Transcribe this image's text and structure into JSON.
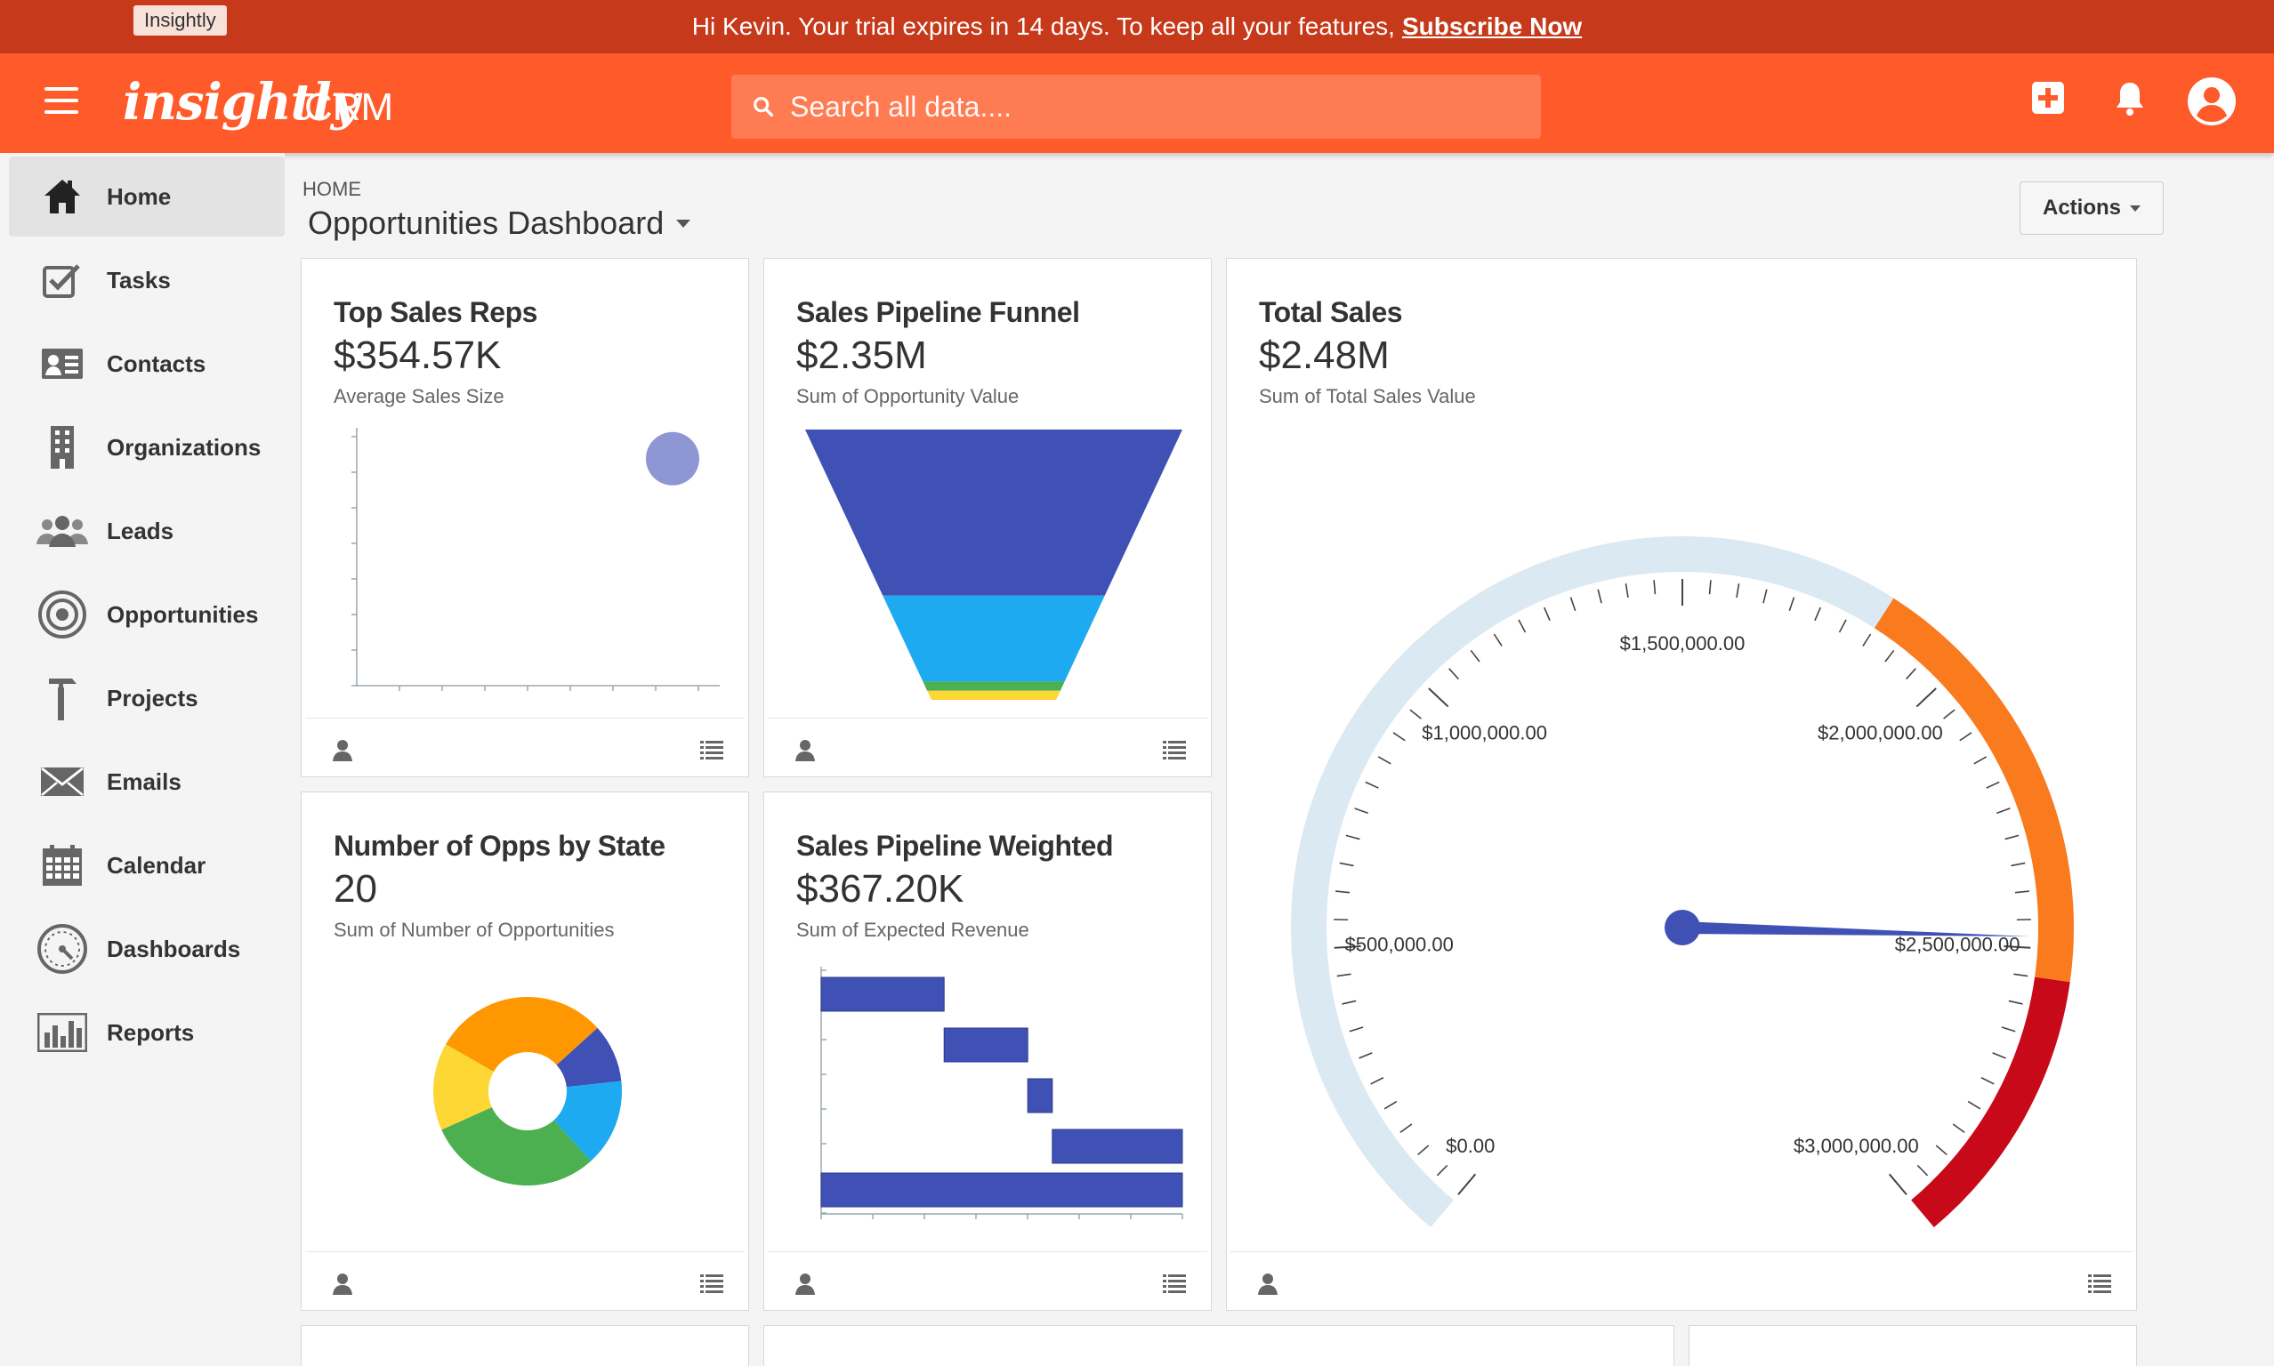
{
  "trial": {
    "brand_tag": "Insightly",
    "message": "Hi Kevin. Your trial expires in 14 days. To keep all your features,",
    "link": "Subscribe Now"
  },
  "topnav": {
    "logo": "insightly",
    "app_name": "CRM",
    "search_placeholder": "Search all data....",
    "icons": [
      "add-icon",
      "bell-icon",
      "user-icon"
    ]
  },
  "sidebar": {
    "items": [
      {
        "label": "Home",
        "icon": "home-icon",
        "active": true
      },
      {
        "label": "Tasks",
        "icon": "tasks-icon"
      },
      {
        "label": "Contacts",
        "icon": "contacts-icon"
      },
      {
        "label": "Organizations",
        "icon": "organizations-icon"
      },
      {
        "label": "Leads",
        "icon": "leads-icon"
      },
      {
        "label": "Opportunities",
        "icon": "opportunities-icon"
      },
      {
        "label": "Projects",
        "icon": "projects-icon"
      },
      {
        "label": "Emails",
        "icon": "emails-icon"
      },
      {
        "label": "Calendar",
        "icon": "calendar-icon"
      },
      {
        "label": "Dashboards",
        "icon": "dashboards-icon"
      },
      {
        "label": "Reports",
        "icon": "reports-icon"
      }
    ]
  },
  "page": {
    "breadcrumb": "HOME",
    "title": "Opportunities Dashboard",
    "actions_label": "Actions"
  },
  "cards": [
    {
      "title": "Top Sales Reps",
      "value": "$354.57K",
      "subtitle": "Average Sales Size"
    },
    {
      "title": "Sales Pipeline Funnel",
      "value": "$2.35M",
      "subtitle": "Sum of Opportunity Value"
    },
    {
      "title": "Total Sales",
      "value": "$2.48M",
      "subtitle": "Sum of Total Sales Value"
    },
    {
      "title": "Number of Opps by State",
      "value": "20",
      "subtitle": "Sum of Number of Opportunities"
    },
    {
      "title": "Sales Pipeline Weighted",
      "value": "$367.20K",
      "subtitle": "Sum of Expected Revenue"
    }
  ],
  "colors": {
    "trial_bar": "#c6391a",
    "nav": "#ff5a2a",
    "indigo": "#3f51b5",
    "sky": "#1eaaf1",
    "green": "#4caf50",
    "yellow": "#fdd835",
    "orange": "#ff9800",
    "gauge_track": "#dbe9f2",
    "gauge_orange": "#fa7a1e",
    "gauge_red": "#c8091a"
  },
  "chart_data": [
    {
      "type": "scatter",
      "title": "Top Sales Reps",
      "points": [
        {
          "x": 0.87,
          "y": 0.88
        }
      ],
      "xlim": [
        0,
        1
      ],
      "ylim": [
        0,
        1
      ]
    },
    {
      "type": "funnel",
      "title": "Sales Pipeline Funnel",
      "stages": [
        {
          "value": 1.45,
          "color": "#3f51b5"
        },
        {
          "value": 0.75,
          "color": "#1eaaf1"
        },
        {
          "value": 0.08,
          "color": "#4caf50"
        },
        {
          "value": 0.08,
          "color": "#fdd835"
        }
      ]
    },
    {
      "type": "gauge",
      "title": "Total Sales",
      "min": 0,
      "max": 3000000,
      "value": 2480000,
      "tick_labels": [
        "$0.00",
        "$500,000.00",
        "$1,000,000.00",
        "$1,500,000.00",
        "$2,000,000.00",
        "$2,500,000.00",
        "$3,000,000.00"
      ],
      "bands": [
        {
          "from": 0,
          "to": 1850000,
          "color": "#dbe9f2"
        },
        {
          "from": 1850000,
          "to": 2550000,
          "color": "#fa7a1e"
        },
        {
          "from": 2550000,
          "to": 3000000,
          "color": "#c8091a"
        }
      ]
    },
    {
      "type": "pie",
      "title": "Number of Opps by State",
      "slices": [
        {
          "value": 6,
          "color": "#ff9800"
        },
        {
          "value": 2,
          "color": "#3f51b5"
        },
        {
          "value": 3,
          "color": "#1eaaf1"
        },
        {
          "value": 6,
          "color": "#4caf50"
        },
        {
          "value": 3,
          "color": "#fdd835"
        }
      ]
    },
    {
      "type": "waterfall",
      "title": "Sales Pipeline Weighted",
      "steps": [
        {
          "start": 0,
          "end": 125
        },
        {
          "start": 125,
          "end": 210
        },
        {
          "start": 210,
          "end": 235
        },
        {
          "start": 235,
          "end": 367.2
        }
      ],
      "total": 367.2,
      "xlim": [
        0,
        367.2
      ]
    }
  ]
}
